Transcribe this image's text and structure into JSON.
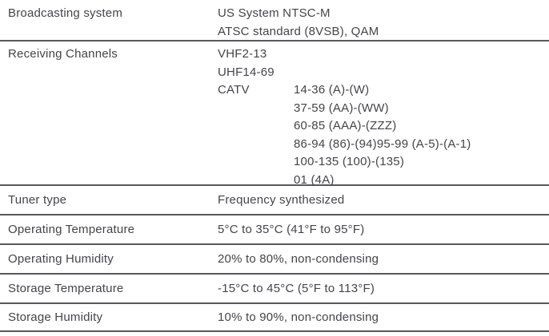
{
  "spec_table": {
    "rows": {
      "broadcasting": {
        "label": "Broadcasting system",
        "values": [
          "US System NTSC-M",
          "ATSC standard (8VSB), QAM"
        ]
      },
      "receiving": {
        "label": "Receiving Channels",
        "values": [
          "VHF2-13",
          "UHF14-69"
        ],
        "catv": {
          "label": "CATV",
          "values": [
            "14-36 (A)-(W)",
            "37-59 (AA)-(WW)",
            "60-85 (AAA)-(ZZZ)",
            "86-94 (86)-(94)95-99 (A-5)-(A-1)",
            "100-135 (100)-(135)",
            "01 (4A)"
          ]
        }
      },
      "tuner": {
        "label": "Tuner type",
        "value": "Frequency synthesized"
      },
      "op_temp": {
        "label": "Operating Temperature",
        "value": "5°C to 35°C (41°F to 95°F)"
      },
      "op_humidity": {
        "label": "Operating Humidity",
        "value": "20% to 80%, non-condensing"
      },
      "st_temp": {
        "label": "Storage Temperature",
        "value": "-15°C to 45°C (5°F to 113°F)"
      },
      "st_humidity": {
        "label": "Storage Humidity",
        "value": "10% to 90%, non-condensing"
      }
    },
    "colors": {
      "text": "#44444c",
      "rule": "#57575c",
      "background": "#ffffff"
    }
  }
}
